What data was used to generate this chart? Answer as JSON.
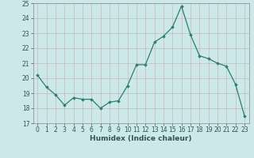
{
  "x": [
    0,
    1,
    2,
    3,
    4,
    5,
    6,
    7,
    8,
    9,
    10,
    11,
    12,
    13,
    14,
    15,
    16,
    17,
    18,
    19,
    20,
    21,
    22,
    23
  ],
  "y": [
    20.2,
    19.4,
    18.9,
    18.2,
    18.7,
    18.6,
    18.6,
    18.0,
    18.4,
    18.5,
    19.5,
    20.9,
    20.9,
    22.4,
    22.8,
    23.4,
    24.8,
    22.9,
    21.5,
    21.3,
    21.0,
    20.8,
    19.6,
    17.5
  ],
  "line_color": "#2e7d6e",
  "marker": "D",
  "marker_size": 1.8,
  "bg_color": "#cce8e8",
  "grid_color_v": "#c8b8b8",
  "grid_color_h": "#c8b8b8",
  "xlabel": "Humidex (Indice chaleur)",
  "xlim": [
    -0.5,
    23.5
  ],
  "ylim": [
    17,
    25
  ],
  "yticks": [
    17,
    18,
    19,
    20,
    21,
    22,
    23,
    24,
    25
  ],
  "xticks": [
    0,
    1,
    2,
    3,
    4,
    5,
    6,
    7,
    8,
    9,
    10,
    11,
    12,
    13,
    14,
    15,
    16,
    17,
    18,
    19,
    20,
    21,
    22,
    23
  ],
  "tick_fontsize": 5.5,
  "label_fontsize": 6.5,
  "line_width": 0.9
}
